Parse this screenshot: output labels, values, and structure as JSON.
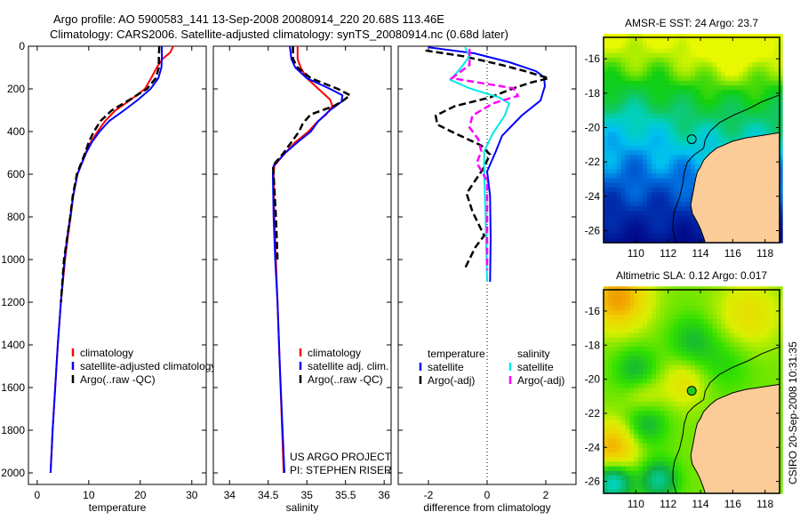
{
  "header": {
    "title_line1": "Argo profile: AO 5900583_141 13-Sep-2008 20080914_220 20.68S 113.46E",
    "title_line2": "Climatology: CARS2006. Satellite-adjusted climatology: synTS_20080914.nc (0.68d later)"
  },
  "credit": {
    "line1": "US ARGO PROJECT",
    "line2": "PI: STEPHEN RISER"
  },
  "stamp": "CSIRO 20-Sep-2008 10:31:35",
  "chart_data": [
    {
      "id": "temperature",
      "type": "line",
      "xlabel": "temperature",
      "ylabel": "",
      "xlim": [
        -1.7,
        32.8
      ],
      "ylim": [
        0,
        2000
      ],
      "y_reversed": true,
      "xticks": [
        0,
        10,
        20,
        30
      ],
      "yticks": [
        0,
        200,
        400,
        600,
        800,
        1000,
        1200,
        1400,
        1600,
        1800,
        2000
      ],
      "legend": [
        "climatology",
        "satellite-adjusted climatology",
        "Argo(..raw -QC)"
      ],
      "series": [
        {
          "name": "climatology",
          "color": "#ff0000",
          "style": "solid",
          "points": [
            [
              0,
              26.4
            ],
            [
              30,
              25.8
            ],
            [
              60,
              24.3
            ],
            [
              100,
              23.2
            ],
            [
              150,
              22.1
            ],
            [
              200,
              20.9
            ],
            [
              250,
              18.2
            ],
            [
              300,
              15.2
            ],
            [
              350,
              13.2
            ],
            [
              400,
              11.7
            ],
            [
              450,
              10.4
            ],
            [
              500,
              9.4
            ],
            [
              600,
              7.8
            ],
            [
              700,
              7.0
            ],
            [
              800,
              6.5
            ],
            [
              900,
              5.9
            ],
            [
              1000,
              5.4
            ],
            [
              1200,
              4.6
            ],
            [
              1400,
              4.0
            ],
            [
              1600,
              3.5
            ],
            [
              1800,
              3.0
            ],
            [
              2000,
              2.6
            ]
          ]
        },
        {
          "name": "satellite-adjusted climatology",
          "color": "#0000ff",
          "style": "solid",
          "points": [
            [
              0,
              24.2
            ],
            [
              50,
              24.2
            ],
            [
              100,
              24.1
            ],
            [
              150,
              23.5
            ],
            [
              200,
              22.0
            ],
            [
              250,
              19.6
            ],
            [
              300,
              16.9
            ],
            [
              350,
              14.0
            ],
            [
              400,
              12.1
            ],
            [
              450,
              10.6
            ],
            [
              500,
              9.5
            ],
            [
              600,
              7.8
            ],
            [
              700,
              7.0
            ],
            [
              800,
              6.4
            ],
            [
              900,
              5.8
            ],
            [
              1000,
              5.3
            ],
            [
              1200,
              4.6
            ],
            [
              1400,
              4.0
            ],
            [
              1600,
              3.5
            ],
            [
              1800,
              3.0
            ],
            [
              2000,
              2.6
            ]
          ]
        },
        {
          "name": "Argo(..raw -QC)",
          "color": "#000000",
          "style": "dashed",
          "points": [
            [
              0,
              23.7
            ],
            [
              50,
              23.6
            ],
            [
              100,
              23.6
            ],
            [
              150,
              23.0
            ],
            [
              200,
              21.3
            ],
            [
              250,
              18.0
            ],
            [
              300,
              14.5
            ],
            [
              350,
              12.3
            ],
            [
              400,
              11.0
            ],
            [
              450,
              10.0
            ],
            [
              500,
              9.3
            ],
            [
              600,
              7.7
            ],
            [
              700,
              6.9
            ],
            [
              800,
              6.4
            ],
            [
              900,
              5.8
            ],
            [
              1000,
              5.2
            ],
            [
              1100,
              4.9
            ],
            [
              1200,
              4.6
            ]
          ]
        }
      ]
    },
    {
      "id": "salinity",
      "type": "line",
      "xlabel": "salinity",
      "xlim": [
        33.79,
        36.09
      ],
      "ylim": [
        0,
        2000
      ],
      "y_reversed": true,
      "xticks": [
        34,
        34.5,
        35,
        35.5,
        36
      ],
      "legend": [
        "climatology",
        "satellite adj. clim.",
        "Argo(..raw -QC)"
      ],
      "series": [
        {
          "name": "climatology",
          "color": "#ff0000",
          "style": "solid",
          "points": [
            [
              0,
              34.88
            ],
            [
              60,
              34.88
            ],
            [
              100,
              34.92
            ],
            [
              150,
              35.0
            ],
            [
              200,
              35.15
            ],
            [
              250,
              35.3
            ],
            [
              280,
              35.33
            ],
            [
              320,
              35.25
            ],
            [
              360,
              35.12
            ],
            [
              400,
              35.02
            ],
            [
              450,
              34.85
            ],
            [
              500,
              34.72
            ],
            [
              560,
              34.58
            ],
            [
              600,
              34.57
            ],
            [
              800,
              34.58
            ],
            [
              1000,
              34.6
            ],
            [
              1200,
              34.62
            ],
            [
              1500,
              34.65
            ],
            [
              2000,
              34.7
            ]
          ]
        },
        {
          "name": "satellite adj. clim.",
          "color": "#0000ff",
          "style": "solid",
          "points": [
            [
              0,
              34.78
            ],
            [
              60,
              34.8
            ],
            [
              100,
              34.85
            ],
            [
              150,
              35.0
            ],
            [
              200,
              35.3
            ],
            [
              230,
              35.46
            ],
            [
              260,
              35.45
            ],
            [
              300,
              35.3
            ],
            [
              350,
              35.15
            ],
            [
              400,
              35.05
            ],
            [
              450,
              34.88
            ],
            [
              500,
              34.72
            ],
            [
              560,
              34.57
            ],
            [
              600,
              34.56
            ],
            [
              800,
              34.57
            ],
            [
              1000,
              34.59
            ],
            [
              1200,
              34.62
            ],
            [
              1500,
              34.65
            ],
            [
              2000,
              34.71
            ]
          ]
        },
        {
          "name": "Argo(..raw -QC)",
          "color": "#000000",
          "style": "dashed",
          "points": [
            [
              0,
              34.82
            ],
            [
              60,
              34.82
            ],
            [
              100,
              34.88
            ],
            [
              150,
              35.05
            ],
            [
              200,
              35.4
            ],
            [
              230,
              35.56
            ],
            [
              260,
              35.45
            ],
            [
              280,
              35.35
            ],
            [
              320,
              35.05
            ],
            [
              360,
              34.95
            ],
            [
              400,
              34.9
            ],
            [
              450,
              34.8
            ],
            [
              500,
              34.7
            ],
            [
              560,
              34.56
            ],
            [
              600,
              34.57
            ],
            [
              800,
              34.6
            ],
            [
              1000,
              34.62
            ]
          ]
        }
      ]
    },
    {
      "id": "difference",
      "type": "line",
      "xlabel": "difference from climatology",
      "xlim": [
        -3.03,
        3.03
      ],
      "ylim": [
        0,
        2000
      ],
      "y_reversed": true,
      "xticks": [
        -2,
        0,
        2
      ],
      "legend_headers": [
        "temperature",
        "salinity"
      ],
      "legend": [
        "satellite",
        "Argo(-adj)",
        "satellite",
        "Argo(-adj)"
      ],
      "series": [
        {
          "name": "temperature satellite",
          "color": "#0000ff",
          "style": "solid",
          "points": [
            [
              5,
              -2.0
            ],
            [
              33,
              -0.45
            ],
            [
              75,
              0.76
            ],
            [
              117,
              1.67
            ],
            [
              145,
              1.94
            ],
            [
              187,
              1.97
            ],
            [
              254,
              1.82
            ],
            [
              325,
              1.18
            ],
            [
              420,
              0.51
            ],
            [
              492,
              0.3
            ],
            [
              587,
              0.0
            ],
            [
              700,
              0.1
            ],
            [
              900,
              0.12
            ],
            [
              1104,
              0.1
            ]
          ]
        },
        {
          "name": "temperature Argo(-adj)",
          "color": "#000000",
          "style": "dashed",
          "points": [
            [
              20,
              -2.1
            ],
            [
              47,
              -0.8
            ],
            [
              88,
              0.5
            ],
            [
              117,
              1.3
            ],
            [
              150,
              2.1
            ],
            [
              170,
              1.5
            ],
            [
              197,
              0.9
            ],
            [
              240,
              0.1
            ],
            [
              281,
              -1.1
            ],
            [
              325,
              -1.75
            ],
            [
              367,
              -1.7
            ],
            [
              408,
              -1.1
            ],
            [
              465,
              -0.2
            ],
            [
              508,
              0.1
            ],
            [
              578,
              -0.15
            ],
            [
              690,
              -0.7
            ],
            [
              775,
              -0.5
            ],
            [
              888,
              -0.1
            ],
            [
              942,
              -0.4
            ],
            [
              1040,
              -0.75
            ]
          ]
        },
        {
          "name": "salinity satellite",
          "color": "#00e8e8",
          "style": "solid",
          "points": [
            [
              5,
              -0.75
            ],
            [
              47,
              -0.6
            ],
            [
              103,
              -0.9
            ],
            [
              158,
              -1.25
            ],
            [
              197,
              -0.6
            ],
            [
              240,
              0.4
            ],
            [
              268,
              0.75
            ],
            [
              325,
              0.6
            ],
            [
              408,
              0.2
            ],
            [
              492,
              -0.1
            ],
            [
              603,
              -0.1
            ],
            [
              800,
              -0.05
            ],
            [
              1104,
              0.0
            ]
          ]
        },
        {
          "name": "salinity Argo(-adj)",
          "color": "#ff00ff",
          "style": "dashed",
          "points": [
            [
              12,
              -0.6
            ],
            [
              88,
              -0.6
            ],
            [
              150,
              -1.2
            ],
            [
              170,
              -0.3
            ],
            [
              197,
              0.9
            ],
            [
              233,
              1.05
            ],
            [
              268,
              0.2
            ],
            [
              325,
              -0.5
            ],
            [
              381,
              -0.6
            ],
            [
              436,
              -0.3
            ],
            [
              492,
              -0.2
            ],
            [
              547,
              -0.35
            ],
            [
              630,
              0.0
            ],
            [
              800,
              0.0
            ],
            [
              1050,
              0.0
            ]
          ]
        }
      ]
    },
    {
      "id": "sst-map",
      "type": "heatmap",
      "title": "AMSR-E SST: 24 Argo: 23.7",
      "xlim": [
        108.0,
        118.9
      ],
      "ylim": [
        -26.7,
        -14.75
      ],
      "xticks": [
        110,
        112,
        114,
        116,
        118
      ],
      "yticks": [
        -16,
        -18,
        -20,
        -22,
        -24,
        -26
      ],
      "argo_location": [
        113.46,
        -20.68
      ],
      "land_color": "#fbcb98"
    },
    {
      "id": "sla-map",
      "type": "heatmap",
      "title": "Altimetric SLA: 0.12 Argo: 0.017",
      "xlim": [
        108.0,
        118.9
      ],
      "ylim": [
        -26.7,
        -14.75
      ],
      "xticks": [
        110,
        112,
        114,
        116,
        118
      ],
      "yticks": [
        -16,
        -18,
        -20,
        -22,
        -24,
        -26
      ],
      "argo_location": [
        113.46,
        -20.68
      ],
      "land_color": "#fbcb98"
    }
  ]
}
